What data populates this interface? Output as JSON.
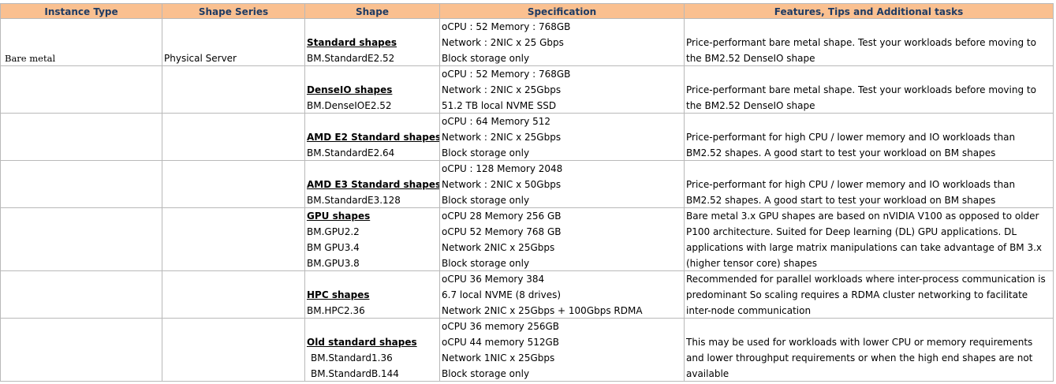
{
  "headers": [
    "Instance Type",
    "Shape Series",
    "Shape",
    "Specification",
    "Features, Tips and Additional tasks"
  ],
  "rows": [
    {
      "instance_type": "Bare metal",
      "shape_series": "Physical Server",
      "shape_title": "Standard shapes",
      "shapes": [
        "BM.StandardE2.52"
      ],
      "spec": [
        "oCPU : 52 Memory : 768GB",
        "Network : 2NIC x 25 Gbps",
        "Block storage only"
      ],
      "features": "Price-performant bare metal shape. Test your workloads before moving to the BM2.52 DenseIO shape"
    },
    {
      "instance_type": "",
      "shape_series": "",
      "shape_title": "DenseIO shapes",
      "shapes": [
        "BM.DenseIOE2.52"
      ],
      "spec": [
        "oCPU : 52 Memory : 768GB",
        "Network : 2NIC x 25Gbps",
        "51.2 TB local NVME SSD"
      ],
      "features": "Price-performant bare metal shape. Test your workloads before moving to the BM2.52 DenseIO shape"
    },
    {
      "instance_type": "",
      "shape_series": "",
      "shape_title": "AMD E2 Standard shapes",
      "shapes": [
        "BM.StandardE2.64"
      ],
      "spec": [
        "oCPU : 64 Memory 512",
        "Network : 2NIC x 25Gbps",
        "Block storage only"
      ],
      "features": "Price-performant for high CPU / lower memory and IO workloads than BM2.52 shapes. A good start to test your workload on BM shapes"
    },
    {
      "instance_type": "",
      "shape_series": "",
      "shape_title": "AMD E3 Standard shapes",
      "shapes": [
        "BM.StandardE3.128"
      ],
      "spec": [
        "oCPU : 128 Memory 2048",
        "Network : 2NIC x 50Gbps",
        "Block storage only"
      ],
      "features": "Price-performant for high CPU / lower memory and IO workloads than BM2.52 shapes. A good start to test your workload on BM shapes"
    },
    {
      "instance_type": "",
      "shape_series": "",
      "shape_title": "GPU shapes",
      "shapes": [
        "BM.GPU2.2",
        "BM GPU3.4",
        "BM.GPU3.8"
      ],
      "spec": [
        "oCPU 28 Memory 256 GB",
        "oCPU 52 Memory 768 GB",
        "Network 2NIC x 25Gbps",
        "Block storage only"
      ],
      "features": "Bare metal 3.x GPU shapes are based on nVIDIA V100 as opposed to older P100 architecture. Suited for Deep learning (DL) GPU applications. DL applications with large matrix manipulations can take advantage of BM 3.x (higher tensor core) shapes"
    },
    {
      "instance_type": "",
      "shape_series": "",
      "shape_title": "HPC shapes",
      "shapes": [
        "BM.HPC2.36"
      ],
      "spec": [
        "oCPU 36 Memory 384",
        "6.7 local NVME (8 drives)",
        "Network 2NIC x 25Gbps + 100Gbps RDMA"
      ],
      "features": "Recommended for parallel workloads where inter-process communication is predominant So scaling requires a RDMA cluster networking to facilitate inter-node communication"
    },
    {
      "instance_type": "",
      "shape_series": "",
      "shape_title": "Old standard shapes",
      "shapes": [
        "BM.Standard1.36",
        "BM.StandardB.144"
      ],
      "spec": [
        "oCPU 36 memory 256GB",
        "oCPU 44 memory 512GB",
        "Network 1NIC x 25Gbps",
        "Block storage only"
      ],
      "features": "This may be used for workloads with lower CPU or memory requirements and lower throughput requirements or when the high end shapes are not available"
    }
  ]
}
